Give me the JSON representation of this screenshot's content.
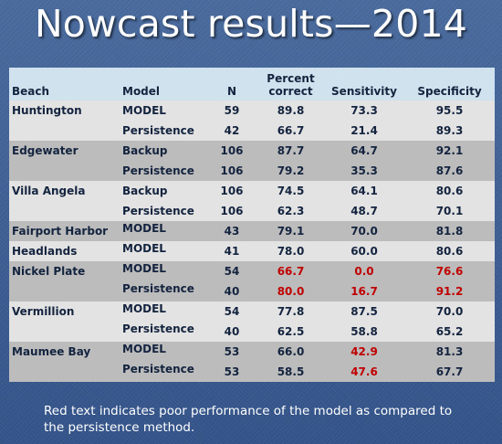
{
  "title": "Nowcast results—2014",
  "table": {
    "headers": {
      "beach": "Beach",
      "model": "Model",
      "n": "N",
      "percent_line1": "Percent",
      "percent_line2": "correct",
      "sensitivity": "Sensitivity",
      "specificity": "Specificity"
    },
    "rows": [
      {
        "beach": "Huntington",
        "model": "MODEL",
        "n": "59",
        "percent": "89.8",
        "sensitivity": "73.3",
        "specificity": "95.5"
      },
      {
        "beach": "",
        "model": "Persistence",
        "n": "42",
        "percent": "66.7",
        "sensitivity": "21.4",
        "specificity": "89.3"
      },
      {
        "beach": "Edgewater",
        "model": "Backup",
        "n": "106",
        "percent": "87.7",
        "sensitivity": "64.7",
        "specificity": "92.1"
      },
      {
        "beach": "",
        "model": "Persistence",
        "n": "106",
        "percent": "79.2",
        "sensitivity": "35.3",
        "specificity": "87.6"
      },
      {
        "beach": "Villa Angela",
        "model": "Backup",
        "n": "106",
        "percent": "74.5",
        "sensitivity": "64.1",
        "specificity": "80.6"
      },
      {
        "beach": "",
        "model": "Persistence",
        "n": "106",
        "percent": "62.3",
        "sensitivity": "48.7",
        "specificity": "70.1"
      },
      {
        "beach": "Fairport Harbor",
        "model": "MODEL",
        "n": "43",
        "percent": "79.1",
        "sensitivity": "70.0",
        "specificity": "81.8"
      },
      {
        "beach": "Headlands",
        "model": "MODEL",
        "n": "41",
        "percent": "78.0",
        "sensitivity": "60.0",
        "specificity": "80.6"
      },
      {
        "beach": "Nickel Plate",
        "model": "MODEL",
        "n": "54",
        "percent": "66.7",
        "sensitivity": "0.0",
        "specificity": "76.6"
      },
      {
        "beach": "",
        "model": "Persistence",
        "n": "40",
        "percent": "80.0",
        "sensitivity": "16.7",
        "specificity": "91.2"
      },
      {
        "beach": "Vermillion",
        "model": "MODEL",
        "n": "54",
        "percent": "77.8",
        "sensitivity": "87.5",
        "specificity": "70.0"
      },
      {
        "beach": "",
        "model": "Persistence",
        "n": "40",
        "percent": "62.5",
        "sensitivity": "58.8",
        "specificity": "65.2"
      },
      {
        "beach": "Maumee Bay",
        "model": "MODEL",
        "n": "53",
        "percent": "66.0",
        "sensitivity": "42.9",
        "specificity": "81.3"
      },
      {
        "beach": "",
        "model": "Persistence",
        "n": "53",
        "percent": "58.5",
        "sensitivity": "47.6",
        "specificity": "67.7"
      }
    ]
  },
  "caption": "Red text indicates poor performance of the model as compared to the persistence method.",
  "colors": {
    "poor_performance": "#c00000",
    "header_bg": "#cfe2ee",
    "row_light": "#e3e3e3",
    "row_dark": "#bcbcbc",
    "background": "#3d5d8f"
  }
}
